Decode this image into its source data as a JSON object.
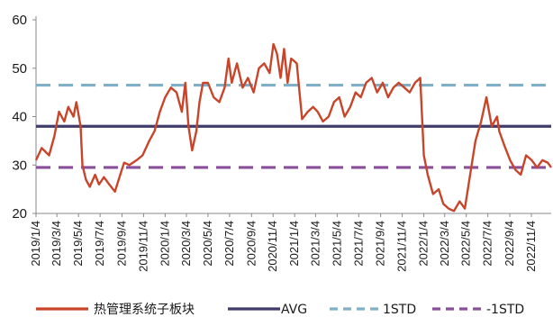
{
  "chart_data": {
    "type": "line",
    "title": "",
    "xlabel": "",
    "ylabel": "",
    "ylim": [
      20,
      60
    ],
    "yticks": [
      20,
      30,
      40,
      50,
      60
    ],
    "xlim": [
      "2019/1/4",
      "2022/12/30"
    ],
    "xticks": [
      "2019/1/4",
      "2019/3/4",
      "2019/5/4",
      "2019/7/4",
      "2019/9/4",
      "2019/11/4",
      "2020/1/4",
      "2020/3/4",
      "2020/5/4",
      "2020/7/4",
      "2020/9/4",
      "2020/11/4",
      "2021/1/4",
      "2021/3/4",
      "2021/5/4",
      "2021/7/4",
      "2021/9/4",
      "2021/11/4",
      "2022/1/4",
      "2022/3/4",
      "2022/5/4",
      "2022/7/4",
      "2022/9/4",
      "2022/11/4"
    ],
    "grid": false,
    "legend": "bottom",
    "series": [
      {
        "name": "热管理系统子板块",
        "color": "#c8452a",
        "style": "solid",
        "x": [
          "2019/1/4",
          "2019/1/20",
          "2019/2/10",
          "2019/2/25",
          "2019/3/10",
          "2019/3/25",
          "2019/4/5",
          "2019/4/20",
          "2019/4/28",
          "2019/5/10",
          "2019/5/15",
          "2019/5/25",
          "2019/6/5",
          "2019/6/20",
          "2019/7/1",
          "2019/7/15",
          "2019/7/30",
          "2019/8/15",
          "2019/8/30",
          "2019/9/10",
          "2019/9/25",
          "2019/10/15",
          "2019/11/1",
          "2019/11/20",
          "2019/12/5",
          "2019/12/20",
          "2020/1/4",
          "2020/1/20",
          "2020/2/5",
          "2020/2/20",
          "2020/3/1",
          "2020/3/10",
          "2020/3/20",
          "2020/4/1",
          "2020/4/10",
          "2020/4/20",
          "2020/5/4",
          "2020/5/20",
          "2020/6/5",
          "2020/6/20",
          "2020/7/1",
          "2020/7/10",
          "2020/7/25",
          "2020/8/10",
          "2020/8/25",
          "2020/9/10",
          "2020/9/25",
          "2020/10/10",
          "2020/10/25",
          "2020/11/5",
          "2020/11/15",
          "2020/11/25",
          "2020/12/5",
          "2020/12/15",
          "2020/12/25",
          "2021/1/10",
          "2021/1/25",
          "2021/2/10",
          "2021/2/25",
          "2021/3/10",
          "2021/3/25",
          "2021/4/10",
          "2021/4/25",
          "2021/5/10",
          "2021/5/25",
          "2021/6/10",
          "2021/6/25",
          "2021/7/10",
          "2021/7/25",
          "2021/8/10",
          "2021/8/25",
          "2021/9/10",
          "2021/9/25",
          "2021/10/10",
          "2021/10/25",
          "2021/11/10",
          "2021/11/25",
          "2021/12/10",
          "2021/12/25",
          "2022/1/4",
          "2022/1/15",
          "2022/1/30",
          "2022/2/15",
          "2022/2/28",
          "2022/3/15",
          "2022/3/30",
          "2022/4/15",
          "2022/4/30",
          "2022/5/15",
          "2022/5/30",
          "2022/6/15",
          "2022/6/30",
          "2022/7/15",
          "2022/7/30",
          "2022/8/5",
          "2022/8/20",
          "2022/9/5",
          "2022/9/20",
          "2022/10/5",
          "2022/10/20",
          "2022/11/5",
          "2022/11/20",
          "2022/12/5",
          "2022/12/20",
          "2022/12/30"
        ],
        "values": [
          31,
          33.5,
          32,
          36,
          41,
          39,
          42,
          40,
          43,
          38,
          30,
          27,
          25.5,
          28,
          26,
          27.5,
          26,
          24.5,
          28,
          30.5,
          30,
          31,
          32,
          35,
          37,
          41,
          44,
          46,
          45,
          41,
          47,
          38,
          33,
          37,
          43,
          47,
          47,
          44,
          43,
          46,
          52,
          47,
          51,
          46,
          48,
          45,
          50,
          51,
          49,
          55,
          53,
          48,
          54,
          47,
          52,
          51,
          39.5,
          41,
          42,
          41,
          39,
          40,
          43,
          44,
          40,
          42,
          45,
          44,
          47,
          48,
          45,
          47,
          44,
          46,
          47,
          46,
          45,
          47,
          48,
          32,
          28,
          24,
          25,
          22,
          21,
          20.5,
          22.5,
          21,
          28,
          35,
          39,
          44,
          38,
          40,
          37,
          34,
          31,
          29,
          28,
          32,
          31,
          29.5,
          31,
          30.5,
          29.5
        ]
      },
      {
        "name": "AVG",
        "color": "#3f3b6b",
        "style": "solid",
        "value": 38
      },
      {
        "name": "1STD",
        "color": "#7fb0c8",
        "style": "dashed",
        "value": 46.5
      },
      {
        "name": "-1STD",
        "color": "#8a4f9a",
        "style": "dashed",
        "value": 29.5
      }
    ]
  }
}
